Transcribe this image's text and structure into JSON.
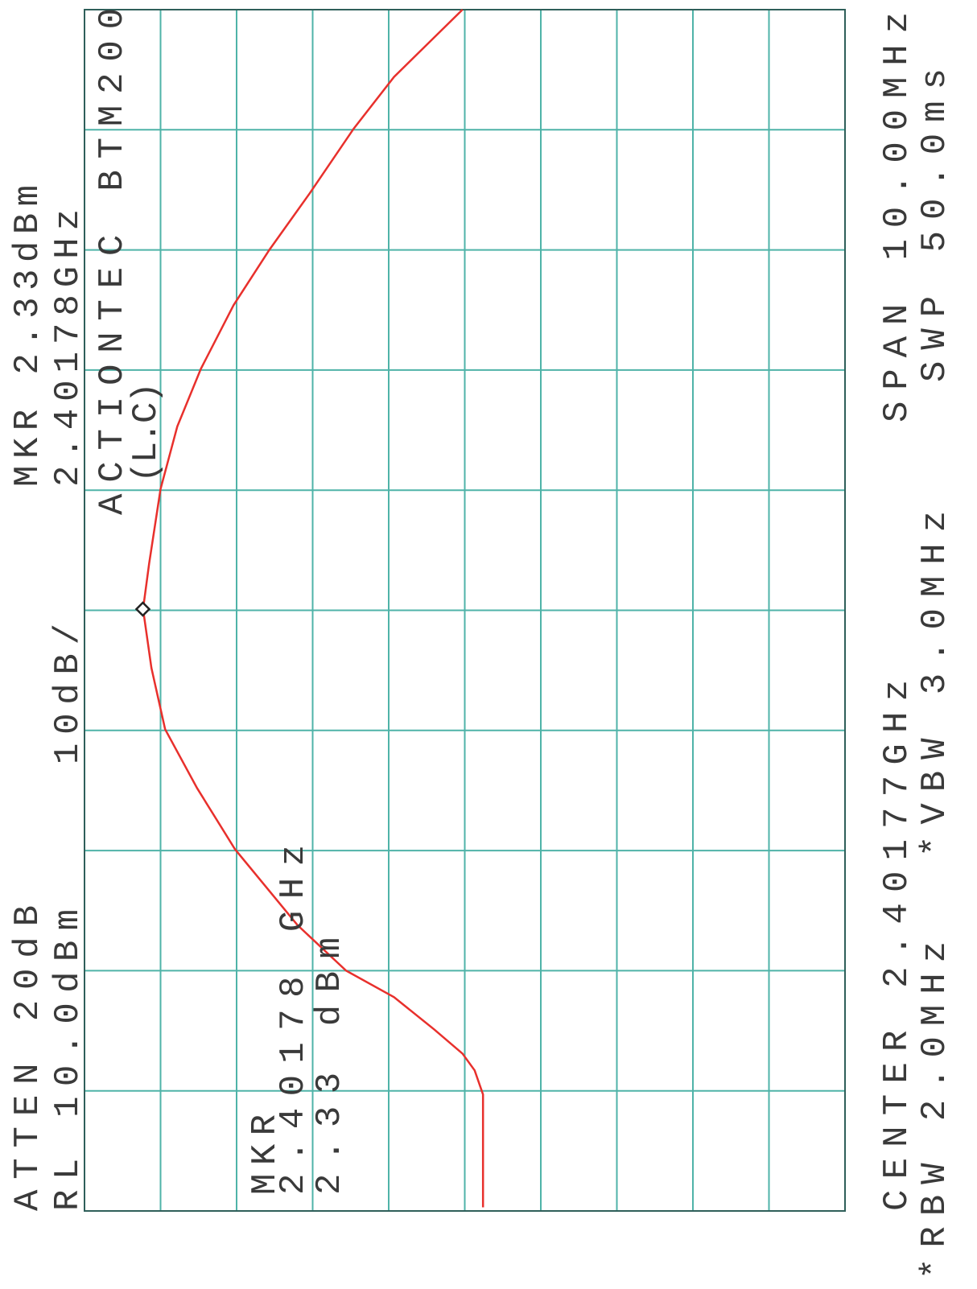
{
  "chart_data": {
    "type": "line",
    "annotations": [
      "MKR 2.33dBm",
      "2.40178GHz",
      "ACTIONTEC BTM200",
      "(L.C)",
      "10dB/",
      "ATTEN 20dB",
      "RL 10.0dBm",
      "MKR",
      "2.40178 GHz",
      "2.33 dBm",
      "CENTER 2.40177GHz",
      "SPAN 10.00MHz",
      "*RBW 2.0MHz",
      "*VBW 3.0MHz",
      "SWP 50.0ms"
    ],
    "xlim": [
      2.39677,
      2.40677
    ],
    "ylim": [
      -90,
      10
    ],
    "series": [
      {
        "color": "#e8302c",
        "x": [
          2.3968,
          2.39774,
          2.39794,
          2.39808,
          2.39828,
          2.39855,
          2.39877,
          2.39915,
          2.39978,
          2.40029,
          2.40078,
          2.40129,
          2.40178,
          2.40216,
          2.40278,
          2.4033,
          2.40378,
          2.40431,
          2.40477,
          2.40524,
          2.40578,
          2.40621,
          2.40677
        ],
        "values": [
          -42.4,
          -42.4,
          -41.3,
          -39.7,
          -36,
          -30.7,
          -24.4,
          -18,
          -9.8,
          -4.8,
          -0.6,
          1.2,
          2.3,
          1.5,
          0,
          -2.2,
          -5.3,
          -9.6,
          -14.3,
          -19.6,
          -25.4,
          -30.7,
          -39.7
        ]
      }
    ],
    "marker": {
      "x": 2.40178,
      "y": 2.33
    },
    "grid": true
  }
}
